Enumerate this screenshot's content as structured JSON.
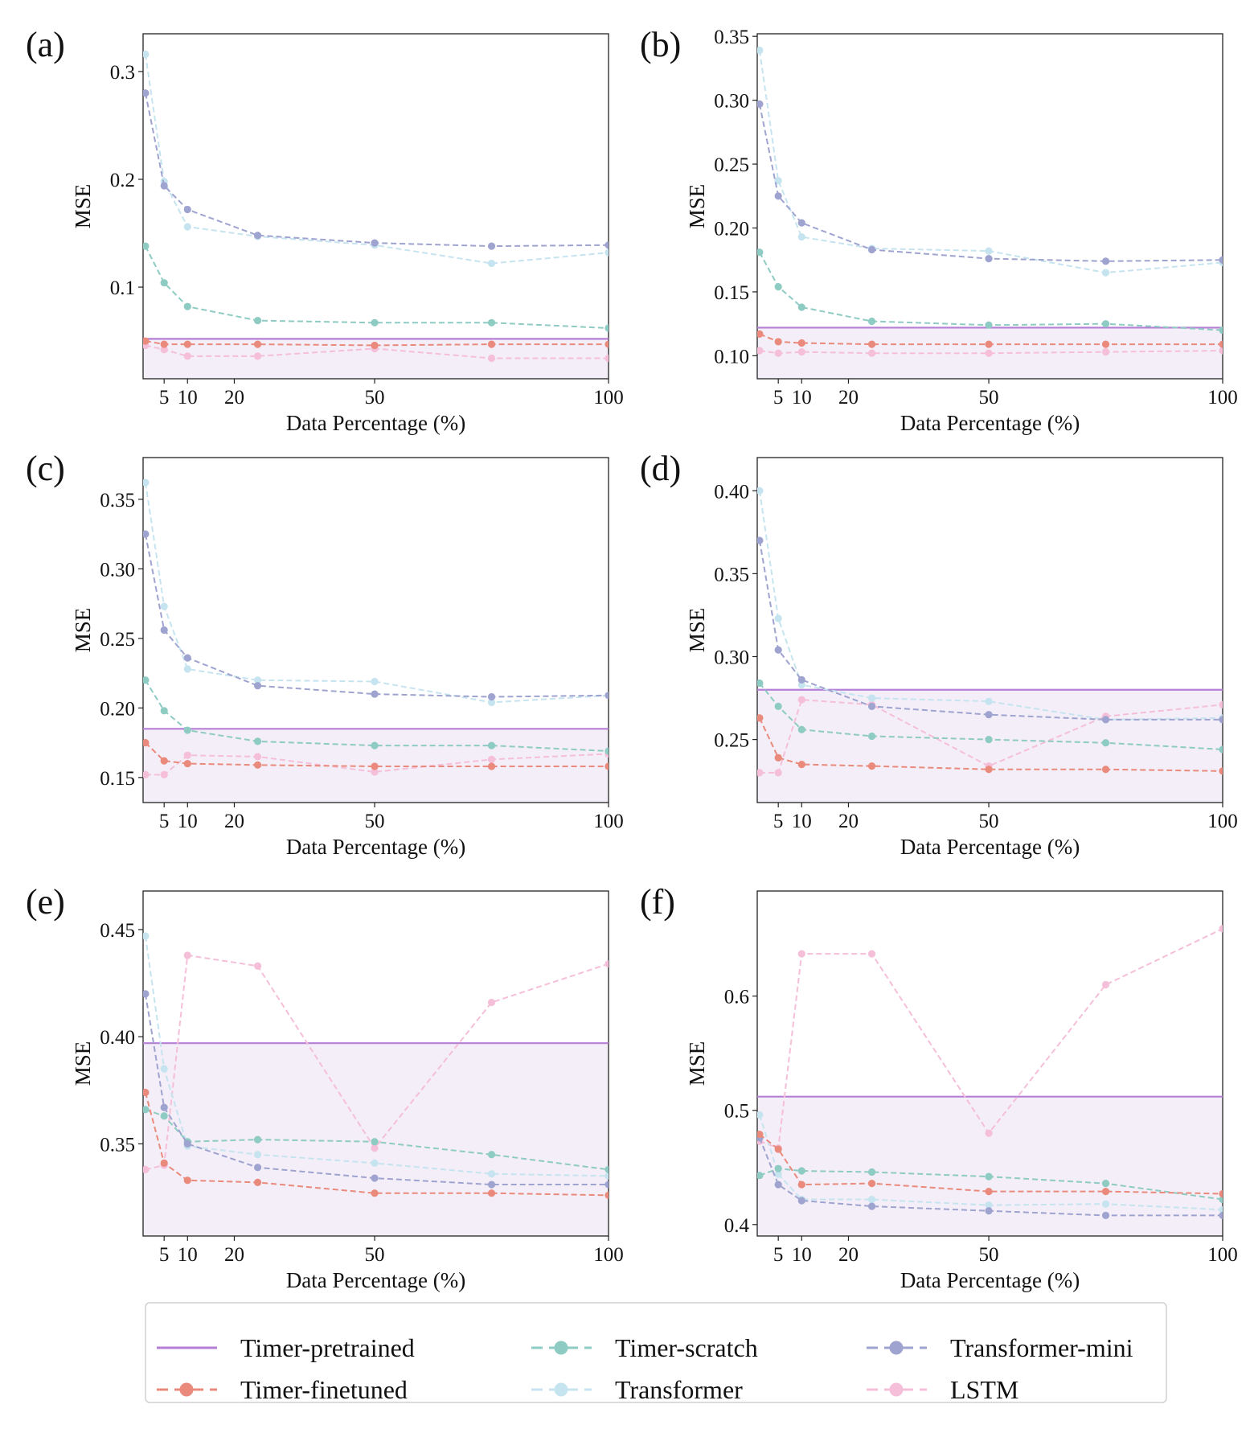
{
  "chart_data": [
    {
      "type": "line",
      "panel_label": "(a)",
      "xlabel": "Data Percentage (%)",
      "ylabel": "MSE",
      "xlim": [
        0.5,
        100
      ],
      "ylim": [
        0.015,
        0.335
      ],
      "x_ticks": [
        5,
        10,
        20,
        50,
        100
      ],
      "y_ticks": [
        0.1,
        0.2,
        0.3
      ],
      "y_tick_labels": [
        "0.1",
        "0.2",
        "0.3"
      ],
      "pretrained": 0.052,
      "x": [
        1,
        5,
        10,
        25,
        50,
        75,
        100
      ],
      "series": [
        {
          "name": "Timer-finetuned",
          "values": [
            0.05,
            0.047,
            0.047,
            0.047,
            0.046,
            0.047,
            0.047
          ]
        },
        {
          "name": "Timer-scratch",
          "values": [
            0.138,
            0.104,
            0.082,
            0.069,
            0.067,
            0.067,
            0.062
          ]
        },
        {
          "name": "Transformer",
          "values": [
            0.316,
            0.198,
            0.156,
            0.147,
            0.139,
            0.122,
            0.132
          ]
        },
        {
          "name": "Transformer-mini",
          "values": [
            0.28,
            0.194,
            0.172,
            0.148,
            0.141,
            0.138,
            0.139
          ]
        },
        {
          "name": "LSTM",
          "values": [
            0.046,
            0.042,
            0.036,
            0.036,
            0.043,
            0.034,
            0.034
          ]
        }
      ]
    },
    {
      "type": "line",
      "panel_label": "(b)",
      "xlabel": "Data Percentage (%)",
      "ylabel": "MSE",
      "xlim": [
        0.5,
        100
      ],
      "ylim": [
        0.082,
        0.352
      ],
      "x_ticks": [
        5,
        10,
        20,
        50,
        100
      ],
      "y_ticks": [
        0.1,
        0.15,
        0.2,
        0.25,
        0.3,
        0.35
      ],
      "y_tick_labels": [
        "0.10",
        "0.15",
        "0.20",
        "0.25",
        "0.30",
        "0.35"
      ],
      "pretrained": 0.122,
      "x": [
        1,
        5,
        10,
        25,
        50,
        75,
        100
      ],
      "series": [
        {
          "name": "Timer-finetuned",
          "values": [
            0.117,
            0.111,
            0.11,
            0.109,
            0.109,
            0.109,
            0.109
          ]
        },
        {
          "name": "Timer-scratch",
          "values": [
            0.181,
            0.154,
            0.138,
            0.127,
            0.124,
            0.125,
            0.12
          ]
        },
        {
          "name": "Transformer",
          "values": [
            0.339,
            0.237,
            0.193,
            0.184,
            0.182,
            0.165,
            0.173
          ]
        },
        {
          "name": "Transformer-mini",
          "values": [
            0.297,
            0.225,
            0.204,
            0.183,
            0.176,
            0.174,
            0.175
          ]
        },
        {
          "name": "LSTM",
          "values": [
            0.104,
            0.102,
            0.103,
            0.102,
            0.102,
            0.103,
            0.104
          ]
        }
      ]
    },
    {
      "type": "line",
      "panel_label": "(c)",
      "xlabel": "Data Percentage (%)",
      "ylabel": "MSE",
      "xlim": [
        0.5,
        100
      ],
      "ylim": [
        0.132,
        0.38
      ],
      "x_ticks": [
        5,
        10,
        20,
        50,
        100
      ],
      "y_ticks": [
        0.15,
        0.2,
        0.25,
        0.3,
        0.35
      ],
      "y_tick_labels": [
        "0.15",
        "0.20",
        "0.25",
        "0.30",
        "0.35"
      ],
      "pretrained": 0.185,
      "x": [
        1,
        5,
        10,
        25,
        50,
        75,
        100
      ],
      "series": [
        {
          "name": "Timer-finetuned",
          "values": [
            0.175,
            0.162,
            0.16,
            0.159,
            0.158,
            0.158,
            0.158
          ]
        },
        {
          "name": "Timer-scratch",
          "values": [
            0.22,
            0.198,
            0.184,
            0.176,
            0.173,
            0.173,
            0.169
          ]
        },
        {
          "name": "Transformer",
          "values": [
            0.362,
            0.273,
            0.228,
            0.22,
            0.219,
            0.204,
            0.209
          ]
        },
        {
          "name": "Transformer-mini",
          "values": [
            0.325,
            0.256,
            0.236,
            0.216,
            0.21,
            0.208,
            0.209
          ]
        },
        {
          "name": "LSTM",
          "values": [
            0.152,
            0.152,
            0.166,
            0.165,
            0.154,
            0.163,
            0.167
          ]
        }
      ]
    },
    {
      "type": "line",
      "panel_label": "(d)",
      "xlabel": "Data Percentage (%)",
      "ylabel": "MSE",
      "xlim": [
        0.5,
        100
      ],
      "ylim": [
        0.212,
        0.42
      ],
      "x_ticks": [
        5,
        10,
        20,
        50,
        100
      ],
      "y_ticks": [
        0.25,
        0.3,
        0.35,
        0.4
      ],
      "y_tick_labels": [
        "0.25",
        "0.30",
        "0.35",
        "0.40"
      ],
      "pretrained": 0.28,
      "x": [
        1,
        5,
        10,
        25,
        50,
        75,
        100
      ],
      "series": [
        {
          "name": "Timer-finetuned",
          "values": [
            0.263,
            0.239,
            0.235,
            0.234,
            0.232,
            0.232,
            0.231
          ]
        },
        {
          "name": "Timer-scratch",
          "values": [
            0.284,
            0.27,
            0.256,
            0.252,
            0.25,
            0.248,
            0.244
          ]
        },
        {
          "name": "Transformer",
          "values": [
            0.4,
            0.323,
            0.283,
            0.275,
            0.273,
            0.262,
            0.263
          ]
        },
        {
          "name": "Transformer-mini",
          "values": [
            0.37,
            0.304,
            0.286,
            0.27,
            0.265,
            0.262,
            0.262
          ]
        },
        {
          "name": "LSTM",
          "values": [
            0.23,
            0.23,
            0.274,
            0.271,
            0.234,
            0.264,
            0.271
          ]
        }
      ]
    },
    {
      "type": "line",
      "panel_label": "(e)",
      "xlabel": "Data Percentage (%)",
      "ylabel": "MSE",
      "xlim": [
        0.5,
        100
      ],
      "ylim": [
        0.307,
        0.468
      ],
      "x_ticks": [
        5,
        10,
        20,
        50,
        100
      ],
      "y_ticks": [
        0.35,
        0.4,
        0.45
      ],
      "y_tick_labels": [
        "0.35",
        "0.40",
        "0.45"
      ],
      "pretrained": 0.397,
      "x": [
        1,
        5,
        10,
        25,
        50,
        75,
        100
      ],
      "series": [
        {
          "name": "Timer-finetuned",
          "values": [
            0.374,
            0.341,
            0.333,
            0.332,
            0.327,
            0.327,
            0.326
          ]
        },
        {
          "name": "Timer-scratch",
          "values": [
            0.366,
            0.363,
            0.351,
            0.352,
            0.351,
            0.345,
            0.338
          ]
        },
        {
          "name": "Transformer",
          "values": [
            0.447,
            0.385,
            0.349,
            0.345,
            0.341,
            0.336,
            0.335
          ]
        },
        {
          "name": "Transformer-mini",
          "values": [
            0.42,
            0.367,
            0.35,
            0.339,
            0.334,
            0.331,
            0.331
          ]
        },
        {
          "name": "LSTM",
          "values": [
            0.338,
            0.34,
            0.438,
            0.433,
            0.348,
            0.416,
            0.434
          ]
        }
      ]
    },
    {
      "type": "line",
      "panel_label": "(f)",
      "xlabel": "Data Percentage (%)",
      "ylabel": "MSE",
      "xlim": [
        0.5,
        100
      ],
      "ylim": [
        0.39,
        0.692
      ],
      "x_ticks": [
        5,
        10,
        20,
        50,
        100
      ],
      "y_ticks": [
        0.4,
        0.5,
        0.6
      ],
      "y_tick_labels": [
        "0.4",
        "0.5",
        "0.6"
      ],
      "pretrained": 0.512,
      "x": [
        1,
        5,
        10,
        25,
        50,
        75,
        100
      ],
      "series": [
        {
          "name": "Timer-finetuned",
          "values": [
            0.479,
            0.466,
            0.435,
            0.436,
            0.429,
            0.429,
            0.427
          ]
        },
        {
          "name": "Timer-scratch",
          "values": [
            0.443,
            0.449,
            0.447,
            0.446,
            0.442,
            0.436,
            0.422
          ]
        },
        {
          "name": "Transformer",
          "values": [
            0.496,
            0.444,
            0.422,
            0.422,
            0.417,
            0.418,
            0.413
          ]
        },
        {
          "name": "Transformer-mini",
          "values": [
            0.476,
            0.435,
            0.421,
            0.416,
            0.412,
            0.408,
            0.408
          ]
        },
        {
          "name": "LSTM",
          "values": [
            0.473,
            0.467,
            0.637,
            0.637,
            0.48,
            0.61,
            0.659
          ]
        }
      ]
    }
  ],
  "legend": {
    "items": [
      {
        "name": "Timer-pretrained",
        "style": "solid"
      },
      {
        "name": "Timer-scratch",
        "style": "dashed-marker"
      },
      {
        "name": "Transformer-mini",
        "style": "dashed-marker"
      },
      {
        "name": "Timer-finetuned",
        "style": "dashed-marker"
      },
      {
        "name": "Transformer",
        "style": "dashed-marker"
      },
      {
        "name": "LSTM",
        "style": "dashed-marker"
      }
    ]
  },
  "colors": {
    "Timer-pretrained": "#b57fd6",
    "Timer-finetuned": "#ea8a7c",
    "Timer-scratch": "#8ecbc3",
    "Transformer": "#c6e4ef",
    "Transformer-mini": "#9fa3cf",
    "LSTM": "#f5bfd9",
    "shade": "#f3eef7"
  }
}
